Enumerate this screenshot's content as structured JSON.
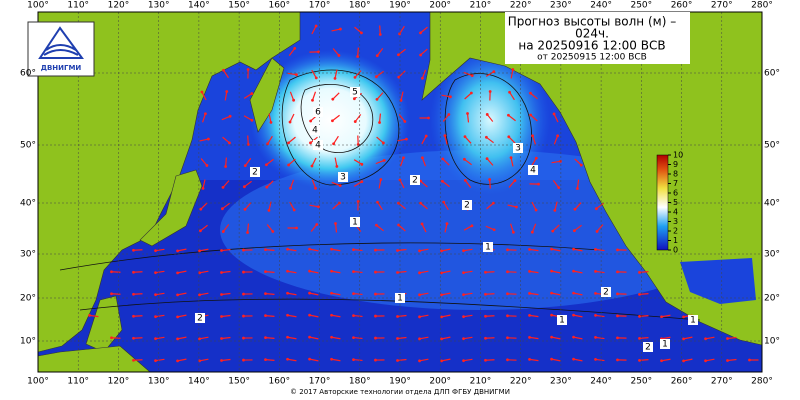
{
  "header": {
    "title_lines": [
      "Прогноз высоты волн (м) –",
      "024ч.",
      "на 20250916 12:00 ВСВ",
      "от 20250915 12:00 ВСВ"
    ],
    "logo": "ДВНИГМИ"
  },
  "map": {
    "lon_labels": [
      "100°",
      "110°",
      "120°",
      "130°",
      "140°",
      "150°",
      "160°",
      "170°",
      "180°",
      "190°",
      "200°",
      "210°",
      "220°",
      "230°",
      "240°",
      "250°",
      "260°",
      "270°",
      "280°"
    ],
    "lat_labels": [
      "60°",
      "50°",
      "40°",
      "30°",
      "20°",
      "10°"
    ],
    "colorbar_ticks": [
      0,
      1,
      2,
      3,
      4,
      5,
      6,
      7,
      8,
      9,
      10
    ],
    "contour_labels": [
      "6",
      "5",
      "4",
      "3",
      "4",
      "2",
      "2",
      "1",
      "2",
      "3",
      "4",
      "1",
      "1",
      "2",
      "1",
      "2",
      "2",
      "1",
      "1"
    ]
  },
  "footer": "© 2017 Авторские технологии отдела ДЛП ФГБУ ДВНИГМИ"
}
